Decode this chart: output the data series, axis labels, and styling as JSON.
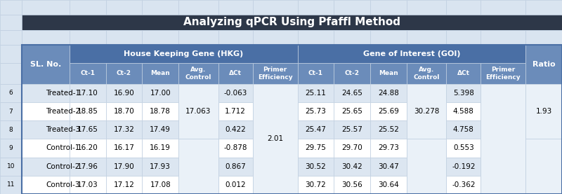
{
  "title": "Analyzing qPCR Using Pfaffl Method",
  "title_bg": "#2d3748",
  "title_color": "#ffffff",
  "header1_text": "House Keeping Gene (HKG)",
  "header1_bg": "#4a6fa5",
  "header1_color": "#ffffff",
  "header2_text": "Gene of Interest (GOI)",
  "header2_bg": "#4a6fa5",
  "header2_color": "#ffffff",
  "col_headers": [
    "SL. No.",
    "Ct-1",
    "Ct-2",
    "Mean",
    "Avg.\nControl",
    "ΔCt",
    "Primer\nEfficiency",
    "Ct-1",
    "Ct-2",
    "Mean",
    "Avg.\nControl",
    "ΔCt",
    "Primer\nEfficiency",
    "Ratio"
  ],
  "col_header_bg": "#6b8cba",
  "col_header_color": "#ffffff",
  "rows": [
    [
      "Treated-1",
      "17.10",
      "16.90",
      "17.00",
      "",
      "-0.063",
      "",
      "25.11",
      "24.65",
      "24.88",
      "",
      "5.398",
      "",
      ""
    ],
    [
      "Treated-2",
      "18.85",
      "18.70",
      "18.78",
      "",
      "1.712",
      "",
      "25.73",
      "25.65",
      "25.69",
      "",
      "4.588",
      "",
      ""
    ],
    [
      "Treated-3",
      "17.65",
      "17.32",
      "17.49",
      "17.063",
      "0.422",
      "2.01",
      "25.47",
      "25.57",
      "25.52",
      "30.278",
      "4.758",
      "",
      "1.93"
    ],
    [
      "Control-1",
      "16.20",
      "16.17",
      "16.19",
      "",
      "-0.878",
      "",
      "29.75",
      "29.70",
      "29.73",
      "",
      "0.553",
      "",
      ""
    ],
    [
      "Control-2",
      "17.96",
      "17.90",
      "17.93",
      "",
      "0.867",
      "",
      "30.52",
      "30.42",
      "30.47",
      "",
      "-0.192",
      "",
      ""
    ],
    [
      "Control-3",
      "17.03",
      "17.12",
      "17.08",
      "",
      "0.012",
      "",
      "30.72",
      "30.56",
      "30.64",
      "",
      "-0.362",
      "",
      ""
    ]
  ],
  "row_bg_even": "#dce6f1",
  "row_bg_odd": "#ffffff",
  "outer_border_color": "#4a6fa5",
  "grid_color": "#c0cfe0",
  "bg_color": "#d9e4f0",
  "merged_cell_bg": "#eaf1f8",
  "font_size": 7.5,
  "header_font_size": 8,
  "title_font_size": 11
}
